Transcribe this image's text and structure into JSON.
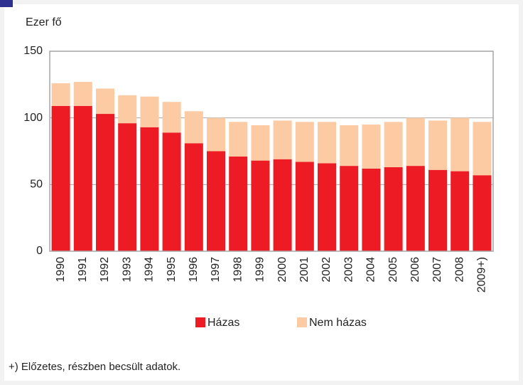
{
  "chart_data": {
    "type": "stacked_bar",
    "ylabel": "Ezer fő",
    "categories": [
      "1990",
      "1991",
      "1992",
      "1993",
      "1994",
      "1995",
      "1996",
      "1997",
      "1998",
      "1999",
      "2000",
      "2001",
      "2002",
      "2003",
      "2004",
      "2005",
      "2006",
      "2007",
      "2008",
      "2009+)"
    ],
    "series": [
      {
        "name": "Házas",
        "color": "#ed1c24",
        "values": [
          109,
          109,
          103,
          96,
          93,
          89,
          81,
          75,
          71,
          68,
          69,
          67,
          66,
          64,
          62,
          63,
          64,
          61,
          60,
          57
        ]
      },
      {
        "name": "Nem házas",
        "color": "#fccba3",
        "values": [
          17,
          18,
          19,
          21,
          23,
          23,
          24,
          25,
          26,
          26.5,
          29,
          30,
          31,
          30.5,
          33,
          34,
          36,
          37,
          40,
          40
        ]
      }
    ],
    "ylim": [
      0,
      150
    ],
    "yticks": [
      0,
      50,
      100,
      150
    ],
    "grid": true,
    "legend": "bottom",
    "footnote": "+) Előzetes, részben becsült adatok."
  }
}
